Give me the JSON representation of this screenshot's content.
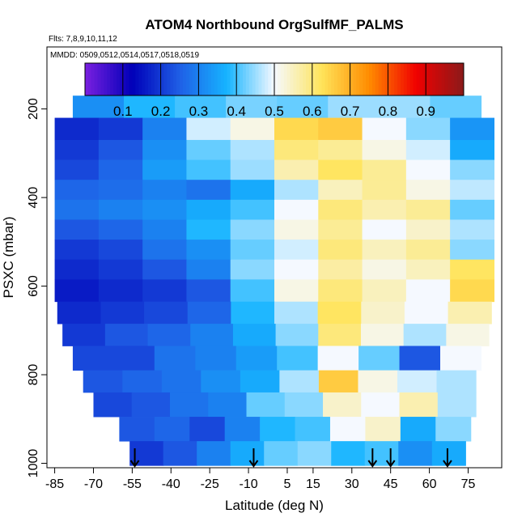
{
  "chart_data": {
    "type": "heatmap",
    "title": "ATOM4 Northbound OrgSulfMF_PALMS",
    "flights_label": "Flts: 7,8,9,10,11,12",
    "dates_label": "MMDD: 0509,0512,0514,0517,0518,0519",
    "xlabel": "Latitude (deg N)",
    "ylabel": "PSXC (mbar)",
    "xlim": [
      -88,
      88
    ],
    "ylim": [
      1010,
      60
    ],
    "x_ticks": [
      -85,
      -70,
      -55,
      -40,
      -25,
      -10,
      5,
      15,
      30,
      45,
      60,
      75
    ],
    "y_ticks": [
      200,
      400,
      600,
      800,
      1000
    ],
    "colorbar": {
      "range": [
        0.0,
        1.0
      ],
      "ticks": [
        0.1,
        0.2,
        0.3,
        0.4,
        0.5,
        0.6,
        0.7,
        0.8,
        0.9
      ],
      "colors": [
        "#7a1fe0",
        "#0000b8",
        "#1f5fe6",
        "#16b4ff",
        "#f5f9ff",
        "#ffe45a",
        "#ff8c00",
        "#f00000",
        "#8b1a1a"
      ]
    },
    "legend_placement": "top, inside plot",
    "grid": false,
    "profile_markers_lat": [
      -54,
      -8,
      38,
      45,
      67
    ],
    "layers": [
      {
        "p_top": 170,
        "p_bot": 220,
        "lat_min": -78,
        "lat_max": 80,
        "values": [
          0.32,
          0.38,
          0.4,
          0.43,
          0.42,
          0.45,
          0.45,
          0.42
        ]
      },
      {
        "p_top": 220,
        "p_bot": 270,
        "lat_min": -85,
        "lat_max": 85,
        "values": [
          0.18,
          0.2,
          0.3,
          0.48,
          0.52,
          0.64,
          0.66,
          0.5,
          0.44,
          0.33
        ]
      },
      {
        "p_top": 270,
        "p_bot": 315,
        "lat_min": -85,
        "lat_max": 85,
        "values": [
          0.2,
          0.24,
          0.32,
          0.42,
          0.46,
          0.6,
          0.58,
          0.52,
          0.48,
          0.36
        ]
      },
      {
        "p_top": 315,
        "p_bot": 360,
        "lat_min": -85,
        "lat_max": 85,
        "values": [
          0.22,
          0.26,
          0.34,
          0.4,
          0.45,
          0.56,
          0.62,
          0.58,
          0.5,
          0.44
        ]
      },
      {
        "p_top": 360,
        "p_bot": 405,
        "lat_min": -85,
        "lat_max": 85,
        "values": [
          0.26,
          0.27,
          0.3,
          0.28,
          0.36,
          0.46,
          0.55,
          0.58,
          0.52,
          0.47
        ]
      },
      {
        "p_top": 405,
        "p_bot": 450,
        "lat_min": -85,
        "lat_max": 85,
        "values": [
          0.28,
          0.3,
          0.32,
          0.36,
          0.4,
          0.5,
          0.6,
          0.56,
          0.58,
          0.42
        ]
      },
      {
        "p_top": 450,
        "p_bot": 495,
        "lat_min": -85,
        "lat_max": 85,
        "values": [
          0.24,
          0.26,
          0.3,
          0.38,
          0.44,
          0.52,
          0.58,
          0.5,
          0.54,
          0.46
        ]
      },
      {
        "p_top": 495,
        "p_bot": 540,
        "lat_min": -85,
        "lat_max": 85,
        "values": [
          0.2,
          0.22,
          0.28,
          0.32,
          0.42,
          0.48,
          0.6,
          0.55,
          0.58,
          0.44
        ]
      },
      {
        "p_top": 540,
        "p_bot": 585,
        "lat_min": -85,
        "lat_max": 85,
        "values": [
          0.18,
          0.2,
          0.24,
          0.3,
          0.44,
          0.5,
          0.57,
          0.52,
          0.55,
          0.62
        ]
      },
      {
        "p_top": 585,
        "p_bot": 635,
        "lat_min": -85,
        "lat_max": 85,
        "values": [
          0.16,
          0.18,
          0.2,
          0.24,
          0.4,
          0.52,
          0.6,
          0.55,
          0.5,
          0.64
        ]
      },
      {
        "p_top": 635,
        "p_bot": 685,
        "lat_min": -84,
        "lat_max": 84,
        "values": [
          0.18,
          0.2,
          0.22,
          0.26,
          0.38,
          0.46,
          0.62,
          0.54,
          0.5,
          0.56
        ]
      },
      {
        "p_top": 685,
        "p_bot": 735,
        "lat_min": -82,
        "lat_max": 83,
        "values": [
          0.2,
          0.24,
          0.26,
          0.3,
          0.36,
          0.44,
          0.6,
          0.52,
          0.46,
          0.52
        ]
      },
      {
        "p_top": 735,
        "p_bot": 790,
        "lat_min": -78,
        "lat_max": 80,
        "values": [
          0.22,
          0.22,
          0.28,
          0.3,
          0.34,
          0.4,
          0.5,
          0.42,
          0.24,
          0.5
        ]
      },
      {
        "p_top": 790,
        "p_bot": 840,
        "lat_min": -74,
        "lat_max": 78,
        "values": [
          0.24,
          0.26,
          0.28,
          0.32,
          0.36,
          0.46,
          0.66,
          0.52,
          0.48,
          0.46
        ]
      },
      {
        "p_top": 840,
        "p_bot": 895,
        "lat_min": -70,
        "lat_max": 78,
        "values": [
          0.22,
          0.24,
          0.28,
          0.3,
          0.42,
          0.44,
          0.54,
          0.5,
          0.56,
          0.46
        ]
      },
      {
        "p_top": 895,
        "p_bot": 950,
        "lat_min": -60,
        "lat_max": 76,
        "values": [
          0.24,
          0.26,
          0.22,
          0.3,
          0.38,
          0.4,
          0.5,
          0.54,
          0.36,
          0.44
        ]
      },
      {
        "p_top": 950,
        "p_bot": 1005,
        "lat_min": -56,
        "lat_max": 74,
        "values": [
          0.2,
          0.24,
          0.3,
          0.36,
          0.42,
          0.44,
          0.38,
          0.4,
          0.32,
          0.36
        ]
      }
    ]
  }
}
